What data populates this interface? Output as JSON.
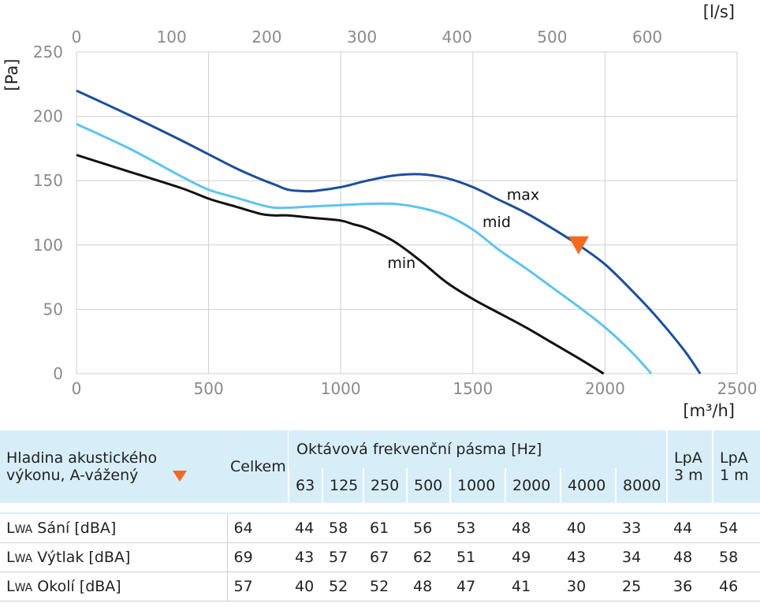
{
  "chart_data": {
    "type": "line",
    "xlabel": "[m³/h]",
    "x2label": "[l/s]",
    "ylabel": "[Pa]",
    "xlim": [
      0,
      2500
    ],
    "ylim": [
      0,
      250
    ],
    "x2lim": [
      0,
      694.4
    ],
    "xticks": [
      "0",
      "500",
      "1000",
      "1500",
      "2000",
      "2500"
    ],
    "yticks": [
      "0",
      "50",
      "100",
      "150",
      "200",
      "250"
    ],
    "x2ticks": [
      "0",
      "100",
      "200",
      "300",
      "400",
      "500",
      "600"
    ],
    "grid": true,
    "series": [
      {
        "name": "max",
        "color": "#1a4f9c",
        "x": [
          0,
          200,
          400,
          600,
          700,
          750,
          800,
          850,
          900,
          1000,
          1100,
          1200,
          1300,
          1400,
          1500,
          1600,
          1700,
          1800,
          1900,
          2000,
          2100,
          2200,
          2300,
          2360
        ],
        "y": [
          220,
          201,
          181,
          160,
          151,
          147,
          143,
          142,
          142,
          145,
          150,
          154,
          155,
          152,
          145,
          135,
          125,
          113,
          100,
          85,
          65,
          43,
          18,
          0
        ]
      },
      {
        "name": "mid",
        "color": "#5ec4ee",
        "x": [
          0,
          200,
          400,
          500,
          600,
          700,
          750,
          800,
          900,
          1000,
          1100,
          1200,
          1300,
          1400,
          1500,
          1600,
          1700,
          1800,
          1900,
          2000,
          2100,
          2175
        ],
        "y": [
          194,
          175,
          153,
          143,
          137,
          131,
          129,
          129,
          130,
          131,
          132,
          132,
          129,
          123,
          112,
          96,
          82,
          67,
          52,
          36,
          17,
          0
        ]
      },
      {
        "name": "min",
        "color": "#111111",
        "x": [
          0,
          200,
          400,
          500,
          600,
          700,
          750,
          800,
          900,
          1000,
          1050,
          1100,
          1200,
          1300,
          1400,
          1500,
          1600,
          1700,
          1800,
          1900,
          1995
        ],
        "y": [
          170,
          157,
          144,
          136,
          130,
          124,
          123,
          123,
          121,
          119,
          116,
          113,
          103,
          88,
          71,
          58,
          47,
          36,
          24,
          12,
          0
        ]
      }
    ],
    "marker": {
      "x": 1900,
      "y": 100,
      "shape": "triangle-down",
      "color": "#f26a21"
    },
    "curve_labels": [
      {
        "text": "max",
        "x": 1690,
        "y": 135
      },
      {
        "text": "mid",
        "x": 1590,
        "y": 114
      },
      {
        "text": "min",
        "x": 1230,
        "y": 82
      }
    ]
  },
  "table": {
    "title_line1": "Hladina akustického",
    "title_line2": "výkonu, A-vážený",
    "col_total": "Celkem",
    "octave_title": "Oktávová frekvenční pásma [Hz]",
    "bands": [
      "63",
      "125",
      "250",
      "500",
      "1000",
      "2000",
      "4000",
      "8000"
    ],
    "lpa3": [
      "LpA",
      "3 m"
    ],
    "lpa1": [
      "LpA",
      "1 m"
    ],
    "rows": [
      {
        "prefix": "L",
        "sub": "WA",
        "label": " Sání [dBA]",
        "total": "64",
        "bands": [
          "44",
          "58",
          "61",
          "56",
          "53",
          "48",
          "40",
          "33"
        ],
        "lpa3": "44",
        "lpa1": "54"
      },
      {
        "prefix": "L",
        "sub": "WA",
        "label": " Výtlak [dBA]",
        "total": "69",
        "bands": [
          "43",
          "57",
          "67",
          "62",
          "51",
          "49",
          "43",
          "34"
        ],
        "lpa3": "48",
        "lpa1": "58"
      },
      {
        "prefix": "L",
        "sub": "WA",
        "label": " Okolí [dBA]",
        "total": "57",
        "bands": [
          "40",
          "52",
          "52",
          "48",
          "47",
          "41",
          "30",
          "25"
        ],
        "lpa3": "36",
        "lpa1": "46"
      }
    ]
  }
}
